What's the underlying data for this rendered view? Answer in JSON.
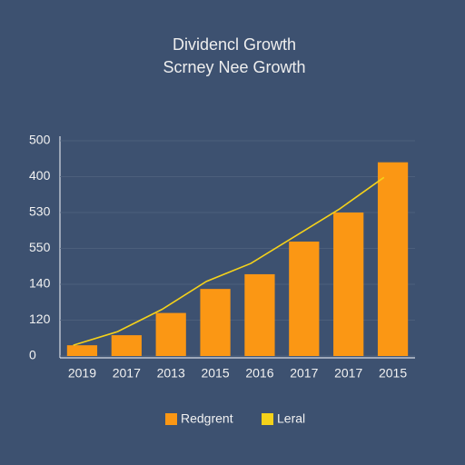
{
  "chart_data": {
    "type": "bar",
    "title": "Dividencl Growth",
    "subtitle": "Scrney Nee Growth",
    "categories": [
      "2019",
      "2017",
      "2013",
      "2015",
      "2016",
      "2017",
      "2017",
      "2015"
    ],
    "series": [
      {
        "name": "Redgrent",
        "color": "#fb9714",
        "type": "bar",
        "values": [
          30,
          58,
          120,
          187,
          228,
          319,
          400,
          540
        ]
      },
      {
        "name": "Leral",
        "color": "#f5d21a",
        "type": "line",
        "values": [
          30,
          68,
          130,
          208,
          258,
          334,
          410,
          498
        ]
      }
    ],
    "ylim": [
      0,
      600
    ],
    "yticks": [
      0,
      {
        "value": 100,
        "label": "120"
      },
      {
        "value": 200,
        "label": "140"
      },
      {
        "value": 300,
        "label": "550"
      },
      {
        "value": 400,
        "label": "530"
      },
      {
        "value": 500,
        "label": "400"
      },
      {
        "value": 600,
        "label": "500"
      }
    ],
    "grid": true
  }
}
